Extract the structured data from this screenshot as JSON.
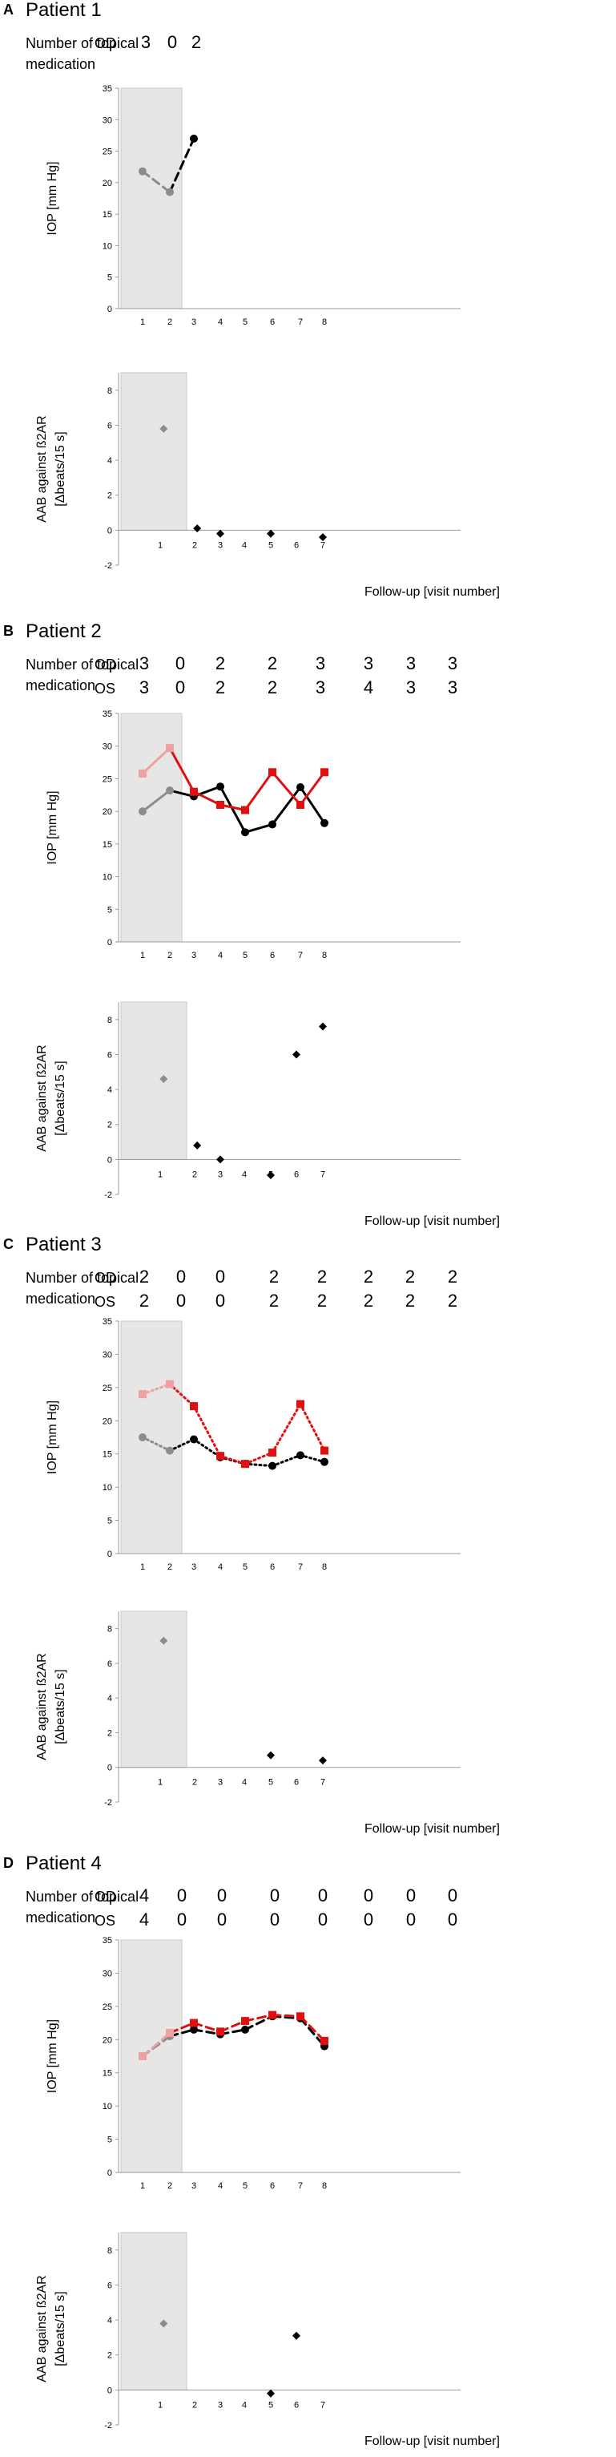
{
  "panels": [
    {
      "letter": "A",
      "title": "Patient 1",
      "med_label_1": "Number of topical",
      "med_label_2": "medication",
      "med_rows": [
        {
          "eye": "OD",
          "values": [
            "3",
            "0",
            "2"
          ]
        }
      ],
      "iop_chart": {
        "type": "line",
        "ylabel": "IOP [mm Hg]",
        "xlabel": "",
        "ylim": [
          0,
          35
        ],
        "yticks": [
          "0",
          "5",
          "10",
          "15",
          "20",
          "25",
          "30",
          "35"
        ],
        "xticks": [
          "1",
          "2",
          "3",
          "4",
          "5",
          "6",
          "7",
          "8"
        ],
        "shaded_visits": [
          1,
          2
        ],
        "series": [
          {
            "name": "OD",
            "x": [
              1,
              2,
              3
            ],
            "values": [
              21.8,
              18.5,
              27.0
            ],
            "style": "dashed",
            "color": "#000000",
            "marker": "circle"
          }
        ]
      },
      "aab_chart": {
        "type": "scatter",
        "ylabel": "AAB against ß2AR [Δbeats/15 s]",
        "xlabel": "Follow-up [visit number]",
        "ylim": [
          -2,
          9
        ],
        "yticks": [
          "-2",
          "0",
          "2",
          "4",
          "6",
          "8"
        ],
        "xticks": [
          "1",
          "2",
          "3",
          "4",
          "5",
          "6",
          "7"
        ],
        "shaded_visits": [
          1,
          2
        ],
        "points": [
          {
            "x": 1.1,
            "y": 5.8
          },
          {
            "x": 2.1,
            "y": 0.1
          },
          {
            "x": 3.0,
            "y": -0.2
          },
          {
            "x": 5.0,
            "y": -0.2
          },
          {
            "x": 7.0,
            "y": -0.4
          }
        ]
      }
    },
    {
      "letter": "B",
      "title": "Patient 2",
      "med_label_1": "Number of topical",
      "med_label_2": "medication",
      "med_rows": [
        {
          "eye": "OD",
          "values": [
            "3",
            "0",
            "2",
            "2",
            "3",
            "3",
            "3",
            "3"
          ]
        },
        {
          "eye": "OS",
          "values": [
            "3",
            "0",
            "2",
            "2",
            "3",
            "4",
            "3",
            "3"
          ]
        }
      ],
      "iop_chart": {
        "type": "line",
        "ylabel": "IOP [mm Hg]",
        "xlabel": "",
        "ylim": [
          0,
          35
        ],
        "yticks": [
          "0",
          "5",
          "10",
          "15",
          "20",
          "25",
          "30",
          "35"
        ],
        "xticks": [
          "1",
          "2",
          "3",
          "4",
          "5",
          "6",
          "7",
          "8"
        ],
        "shaded_visits": [
          1,
          2
        ],
        "series": [
          {
            "name": "OD",
            "x": [
              1,
              2,
              3,
              4,
              5,
              6,
              7,
              8
            ],
            "values": [
              20.0,
              23.2,
              22.3,
              23.8,
              16.8,
              18.0,
              23.7,
              18.2
            ],
            "style": "solid",
            "color": "#000000",
            "marker": "circle"
          },
          {
            "name": "OS",
            "x": [
              1,
              2,
              3,
              4,
              5,
              6,
              7,
              8
            ],
            "values": [
              25.8,
              29.7,
              23.0,
              21.0,
              20.2,
              26.0,
              21.0,
              26.0
            ],
            "style": "solid",
            "color": "#e01010",
            "marker": "square"
          }
        ]
      },
      "aab_chart": {
        "type": "scatter",
        "ylabel": "AAB against ß2AR [Δbeats/15 s]",
        "xlabel": "Follow-up [visit number]",
        "ylim": [
          -2,
          9
        ],
        "yticks": [
          "-2",
          "0",
          "2",
          "4",
          "6",
          "8"
        ],
        "xticks": [
          "1",
          "2",
          "3",
          "4",
          "5",
          "6",
          "7"
        ],
        "shaded_visits": [
          1,
          2
        ],
        "points": [
          {
            "x": 1.1,
            "y": 4.6
          },
          {
            "x": 2.1,
            "y": 0.8
          },
          {
            "x": 3.0,
            "y": 0.0
          },
          {
            "x": 5.0,
            "y": -0.9
          },
          {
            "x": 6.0,
            "y": 6.0
          },
          {
            "x": 7.0,
            "y": 7.6
          }
        ]
      }
    },
    {
      "letter": "C",
      "title": "Patient 3",
      "med_label_1": "Number of topical",
      "med_label_2": "medication",
      "med_rows": [
        {
          "eye": "OD",
          "values": [
            "2",
            "0",
            "0",
            "2",
            "2",
            "2",
            "2",
            "2"
          ]
        },
        {
          "eye": "OS",
          "values": [
            "2",
            "0",
            "0",
            "2",
            "2",
            "2",
            "2",
            "2"
          ]
        }
      ],
      "iop_chart": {
        "type": "line",
        "ylabel": "IOP [mm Hg]",
        "xlabel": "",
        "ylim": [
          0,
          35
        ],
        "yticks": [
          "0",
          "5",
          "10",
          "15",
          "20",
          "25",
          "30",
          "35"
        ],
        "xticks": [
          "1",
          "2",
          "3",
          "4",
          "5",
          "6",
          "7",
          "8"
        ],
        "shaded_visits": [
          1,
          2
        ],
        "series": [
          {
            "name": "OD",
            "x": [
              1,
              2,
              3,
              4,
              5,
              6,
              7,
              8
            ],
            "values": [
              17.5,
              15.5,
              17.2,
              14.5,
              13.5,
              13.2,
              14.8,
              13.8
            ],
            "style": "dotted",
            "color": "#000000",
            "marker": "circle"
          },
          {
            "name": "OS",
            "x": [
              1,
              2,
              3,
              4,
              5,
              6,
              7,
              8
            ],
            "values": [
              24.0,
              25.5,
              22.2,
              14.7,
              13.5,
              15.2,
              22.5,
              15.5
            ],
            "style": "dotted",
            "color": "#e01010",
            "marker": "square"
          }
        ]
      },
      "aab_chart": {
        "type": "scatter",
        "ylabel": "AAB against ß2AR [Δbeats/15 s]",
        "xlabel": "Follow-up [visit number]",
        "ylim": [
          -2,
          9
        ],
        "yticks": [
          "-2",
          "0",
          "2",
          "4",
          "6",
          "8"
        ],
        "xticks": [
          "1",
          "2",
          "3",
          "4",
          "5",
          "6",
          "7"
        ],
        "shaded_visits": [
          1,
          2
        ],
        "points": [
          {
            "x": 1.1,
            "y": 7.3
          },
          {
            "x": 5.0,
            "y": 0.7
          },
          {
            "x": 7.0,
            "y": 0.4
          }
        ]
      }
    },
    {
      "letter": "D",
      "title": "Patient 4",
      "med_label_1": "Number of topical",
      "med_label_2": "medication",
      "med_rows": [
        {
          "eye": "OD",
          "values": [
            "4",
            "0",
            "0",
            "0",
            "0",
            "0",
            "0",
            "0"
          ]
        },
        {
          "eye": "OS",
          "values": [
            "4",
            "0",
            "0",
            "0",
            "0",
            "0",
            "0",
            "0"
          ]
        }
      ],
      "iop_chart": {
        "type": "line",
        "ylabel": "IOP [mm Hg]",
        "xlabel": "",
        "ylim": [
          0,
          35
        ],
        "yticks": [
          "0",
          "5",
          "10",
          "15",
          "20",
          "25",
          "30",
          "35"
        ],
        "xticks": [
          "1",
          "2",
          "3",
          "4",
          "5",
          "6",
          "7",
          "8"
        ],
        "shaded_visits": [
          1,
          2
        ],
        "series": [
          {
            "name": "OD",
            "x": [
              1,
              2,
              3,
              4,
              5,
              6,
              7,
              8
            ],
            "values": [
              17.5,
              20.5,
              21.5,
              20.8,
              21.5,
              23.5,
              23.2,
              19.0
            ],
            "style": "dashed",
            "color": "#000000",
            "marker": "circle"
          },
          {
            "name": "OS",
            "x": [
              1,
              2,
              3,
              4,
              5,
              6,
              7,
              8
            ],
            "values": [
              17.5,
              21.0,
              22.5,
              21.2,
              22.8,
              23.7,
              23.5,
              19.8
            ],
            "style": "dashed",
            "color": "#e01010",
            "marker": "square"
          }
        ]
      },
      "aab_chart": {
        "type": "scatter",
        "ylabel": "AAB against ß2AR [Δbeats/15 s]",
        "xlabel": "Follow-up [visit number]",
        "ylim": [
          -2,
          9
        ],
        "yticks": [
          "-2",
          "0",
          "2",
          "4",
          "6",
          "8"
        ],
        "xticks": [
          "1",
          "2",
          "3",
          "4",
          "5",
          "6",
          "7"
        ],
        "shaded_visits": [
          1,
          2
        ],
        "points": [
          {
            "x": 1.1,
            "y": 3.8
          },
          {
            "x": 5.0,
            "y": -0.2
          },
          {
            "x": 6.0,
            "y": 3.1
          }
        ]
      }
    }
  ],
  "colors": {
    "shade": "#e6e6e6",
    "shade_border": "#c8c8c8",
    "axis": "#999999",
    "od_preop": "#8c8c8c",
    "os_preop": "#f0a0a0",
    "od": "#000000",
    "os": "#e01010",
    "aab_preop": "#8c8c8c",
    "aab": "#000000"
  }
}
